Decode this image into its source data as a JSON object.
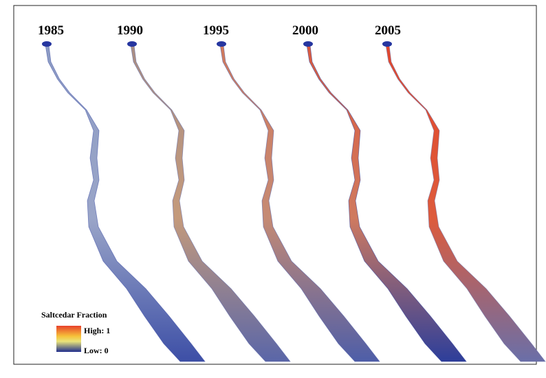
{
  "panels": [
    {
      "year": "1985"
    },
    {
      "year": "1990"
    },
    {
      "year": "1995"
    },
    {
      "year": "2000"
    },
    {
      "year": "2005"
    }
  ],
  "legend": {
    "title": "Saltcedar Fraction",
    "high": "High: 1",
    "low": "Low: 0"
  }
}
